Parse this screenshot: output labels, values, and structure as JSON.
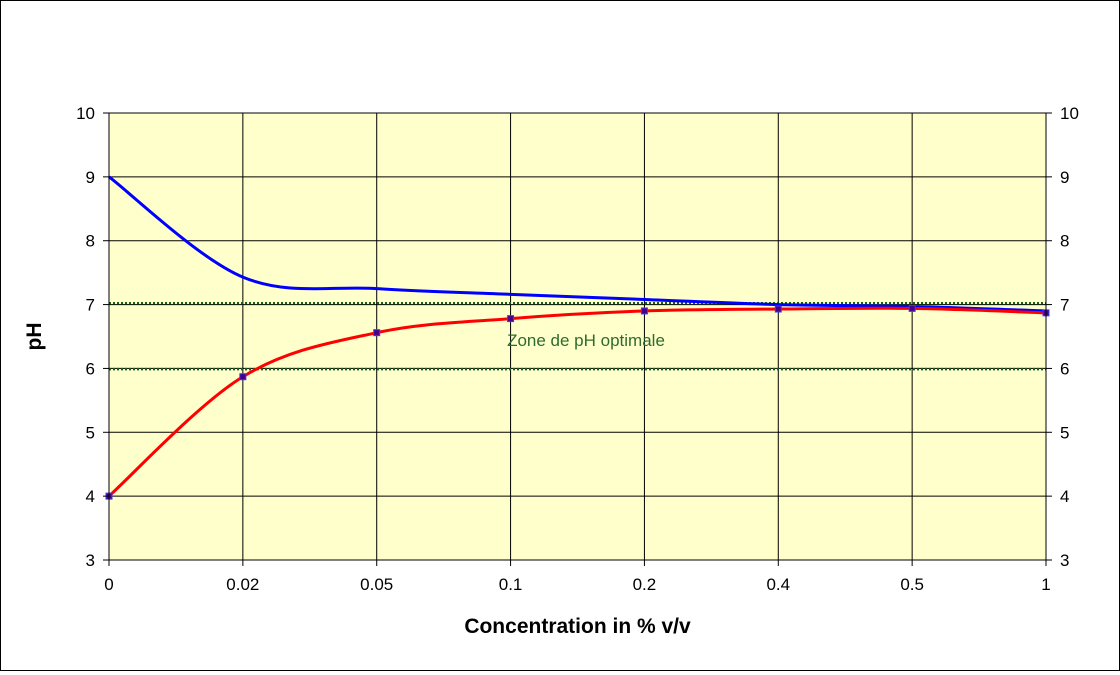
{
  "chart_data": {
    "type": "line",
    "title": "",
    "xlabel": "Concentration in % v/v",
    "ylabel": "pH",
    "categories": [
      "0",
      "0.02",
      "0.05",
      "0.1",
      "0.2",
      "0.4",
      "0.5",
      "1"
    ],
    "ylim": [
      3,
      10
    ],
    "yticks": [
      "3",
      "4",
      "5",
      "6",
      "7",
      "8",
      "9",
      "10"
    ],
    "y2ticks": [
      "3",
      "4",
      "5",
      "6",
      "7",
      "8",
      "9",
      "10"
    ],
    "grid": true,
    "legend": "none",
    "series": [
      {
        "values": [
          9.0,
          7.43,
          7.25,
          7.16,
          7.08,
          7.0,
          6.97,
          6.9
        ],
        "color": "#0000ff",
        "markers": false
      },
      {
        "values": [
          4.0,
          5.87,
          6.56,
          6.78,
          6.9,
          6.93,
          6.94,
          6.87
        ],
        "color": "#ff0000",
        "markers": true,
        "marker_color": "#4b0082"
      }
    ],
    "reference_lines": [
      {
        "y": 7.02,
        "color": "#1a5c1a",
        "style": "dotted"
      },
      {
        "y": 5.99,
        "color": "#1a5c1a",
        "style": "dotted"
      }
    ],
    "annotation": {
      "text": "Zone de pH optimale",
      "color": "#2e6b2e"
    },
    "plot_background": "#ffffcc",
    "gridline_color": "#000000"
  }
}
